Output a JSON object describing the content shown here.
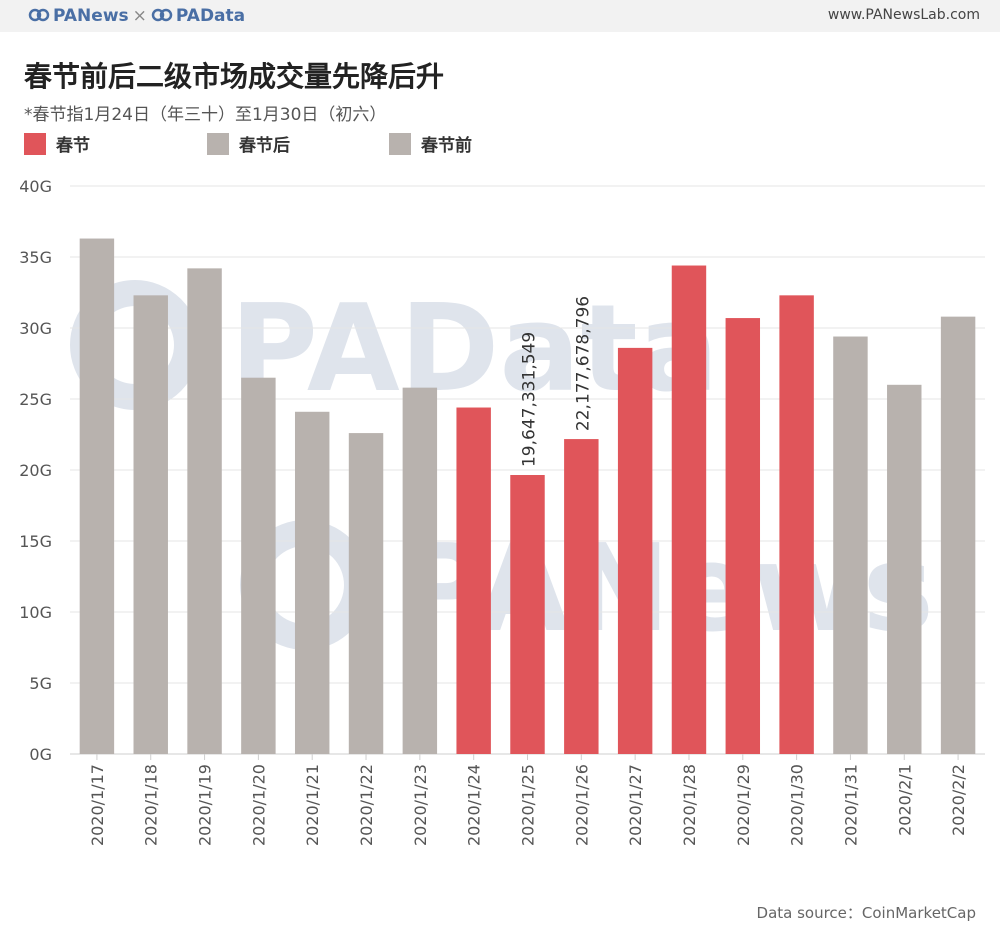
{
  "header": {
    "brand_left": "PANews",
    "brand_sep": "×",
    "brand_right": "PAData",
    "site": "www.PANewsLab.com"
  },
  "colors": {
    "festival": "#e0555a",
    "before_after": "#b8b2ae",
    "brand": "#4a6fa5"
  },
  "legend": [
    {
      "label": "春节",
      "color": "#e0555a"
    },
    {
      "label": "春节后",
      "color": "#b8b2ae"
    },
    {
      "label": "春节前",
      "color": "#b8b2ae"
    }
  ],
  "source": "Data source：CoinMarketCap",
  "chart_data": {
    "type": "bar",
    "title": "春节前后二级市场成交量先降后升",
    "subtitle": "*春节指1月24日（年三十）至1月30日（初六）",
    "categories": [
      "2020/1/17",
      "2020/1/18",
      "2020/1/19",
      "2020/1/20",
      "2020/1/21",
      "2020/1/22",
      "2020/1/23",
      "2020/1/24",
      "2020/1/25",
      "2020/1/26",
      "2020/1/27",
      "2020/1/28",
      "2020/1/29",
      "2020/1/30",
      "2020/1/31",
      "2020/2/1",
      "2020/2/2"
    ],
    "values": [
      36.3,
      32.3,
      34.2,
      26.5,
      24.1,
      22.6,
      25.8,
      24.4,
      19.647331549,
      22.177678796,
      28.6,
      34.4,
      30.7,
      32.3,
      29.4,
      26.0,
      30.8
    ],
    "groups": [
      "before",
      "before",
      "before",
      "before",
      "before",
      "before",
      "before",
      "festival",
      "festival",
      "festival",
      "festival",
      "festival",
      "festival",
      "festival",
      "after",
      "after",
      "after"
    ],
    "data_labels": [
      {
        "index": 8,
        "text": "19,647,331,549"
      },
      {
        "index": 9,
        "text": "22,177,678,796"
      }
    ],
    "y_ticks": [
      0,
      5,
      10,
      15,
      20,
      25,
      30,
      35,
      40
    ],
    "y_tick_labels": [
      "0G",
      "5G",
      "10G",
      "15G",
      "20G",
      "25G",
      "30G",
      "35G",
      "40G"
    ],
    "ylim": [
      0,
      40
    ],
    "grid": true,
    "legend_position": "top-left",
    "watermarks": [
      "PAData",
      "PANews"
    ]
  }
}
